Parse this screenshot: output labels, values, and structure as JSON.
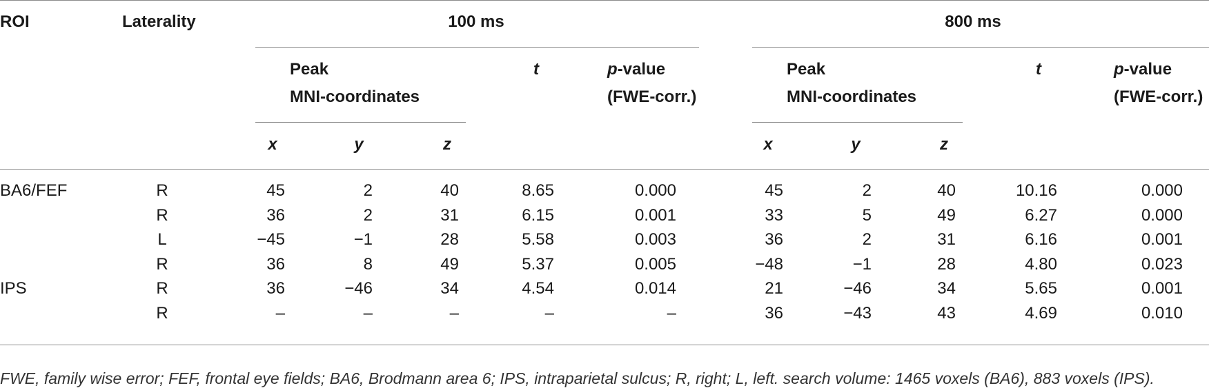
{
  "headers": {
    "roi": "ROI",
    "laterality": "Laterality",
    "group_100": "100 ms",
    "group_800": "800 ms",
    "peak_line1": "Peak",
    "peak_line2": "MNI-coordinates",
    "t": "t",
    "p_italic": "p",
    "p_rest": "-value",
    "p_line2": "(FWE-corr.)",
    "x": "x",
    "y": "y",
    "z": "z"
  },
  "rows": [
    {
      "roi": "BA6/FEF",
      "lat": "R",
      "a": {
        "x": "45",
        "y": "2",
        "z": "40",
        "t": "8.65",
        "p": "0.000"
      },
      "b": {
        "x": "45",
        "y": "2",
        "z": "40",
        "t": "10.16",
        "p": "0.000"
      }
    },
    {
      "roi": "",
      "lat": "R",
      "a": {
        "x": "36",
        "y": "2",
        "z": "31",
        "t": "6.15",
        "p": "0.001"
      },
      "b": {
        "x": "33",
        "y": "5",
        "z": "49",
        "t": "6.27",
        "p": "0.000"
      }
    },
    {
      "roi": "",
      "lat": "L",
      "a": {
        "x": "−45",
        "y": "−1",
        "z": "28",
        "t": "5.58",
        "p": "0.003"
      },
      "b": {
        "x": "36",
        "y": "2",
        "z": "31",
        "t": "6.16",
        "p": "0.001"
      }
    },
    {
      "roi": "",
      "lat": "R",
      "a": {
        "x": "36",
        "y": "8",
        "z": "49",
        "t": "5.37",
        "p": "0.005"
      },
      "b": {
        "x": "−48",
        "y": "−1",
        "z": "28",
        "t": "4.80",
        "p": "0.023"
      }
    },
    {
      "roi": "IPS",
      "lat": "R",
      "a": {
        "x": "36",
        "y": "−46",
        "z": "34",
        "t": "4.54",
        "p": "0.014"
      },
      "b": {
        "x": "21",
        "y": "−46",
        "z": "34",
        "t": "5.65",
        "p": "0.001"
      }
    },
    {
      "roi": "",
      "lat": "R",
      "a": {
        "x": "–",
        "y": "–",
        "z": "–",
        "t": "–",
        "p": "–"
      },
      "b": {
        "x": "36",
        "y": "−43",
        "z": "43",
        "t": "4.69",
        "p": "0.010"
      }
    }
  ],
  "footnote": "FWE, family wise error; FEF, frontal eye fields; BA6, Brodmann area 6; IPS, intraparietal sulcus; R, right; L, left. search volume: 1465 voxels (BA6), 883 voxels (IPS)."
}
